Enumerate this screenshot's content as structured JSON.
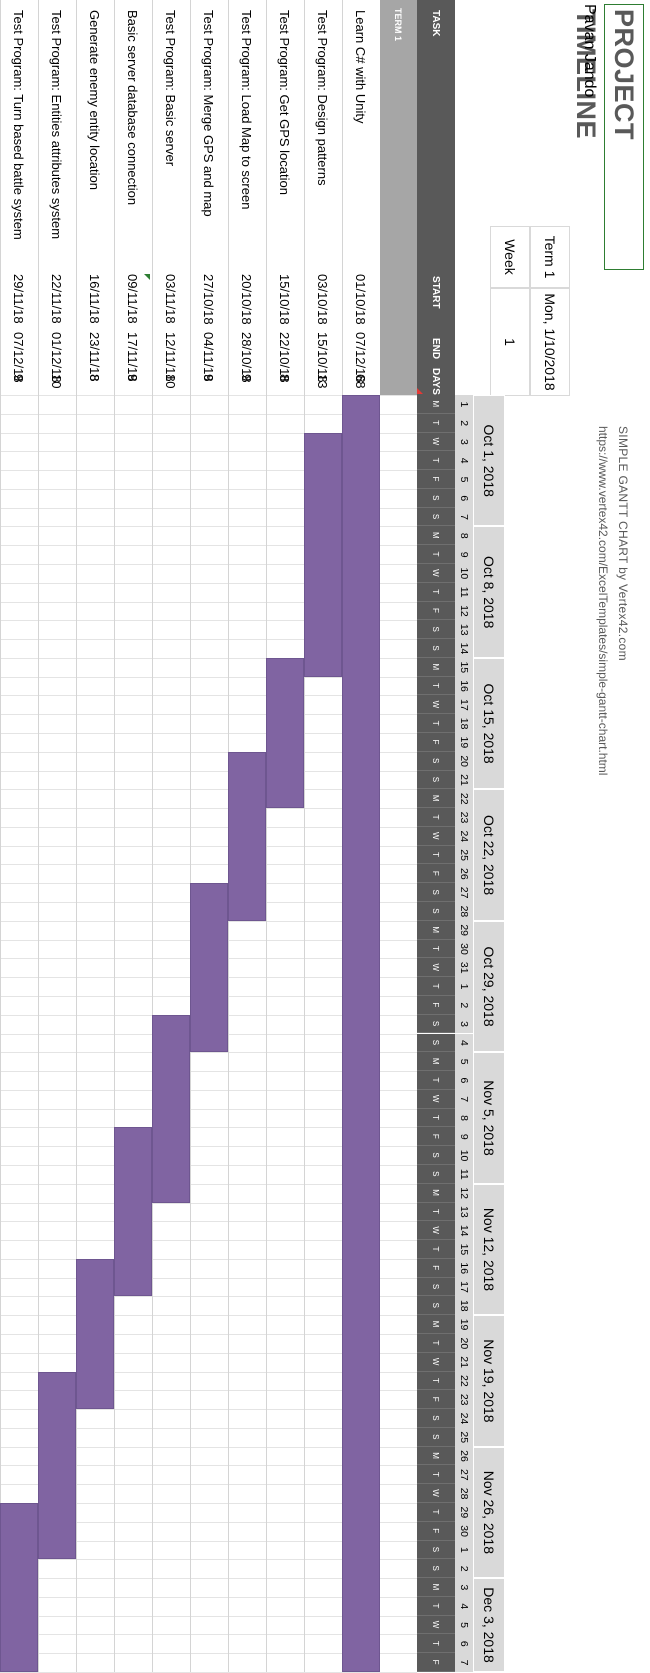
{
  "title": "PROJECT TIMELINE",
  "owner": "Pavan Jando",
  "brand": {
    "title": "SIMPLE GANTT CHART by Vertex42.com",
    "url": "https://www.vertex42.com/ExcelTemplates/simple-gantt-chart.html"
  },
  "project_start_label": "Term 1",
  "project_start_value": "Mon, 1/10/2018",
  "week_label": "Week",
  "week_value": "1",
  "headers": {
    "task": "TASK",
    "start": "START",
    "end": "END",
    "days": "DAYS"
  },
  "weeks": [
    "Oct 1, 2018",
    "Oct 8, 2018",
    "Oct 15, 2018",
    "Oct 22, 2018",
    "Oct 29, 2018",
    "Nov 5, 2018",
    "Nov 12, 2018",
    "Nov 19, 2018",
    "Nov 26, 2018",
    "Dec 3, 2018"
  ],
  "day_numbers": [
    "1",
    "2",
    "3",
    "4",
    "5",
    "6",
    "7",
    "8",
    "9",
    "10",
    "11",
    "12",
    "13",
    "14",
    "15",
    "16",
    "17",
    "18",
    "19",
    "20",
    "21",
    "22",
    "23",
    "24",
    "25",
    "26",
    "27",
    "28",
    "29",
    "30",
    "31",
    "1",
    "2",
    "3",
    "4",
    "5",
    "6",
    "7",
    "8",
    "9",
    "10",
    "11",
    "12",
    "13",
    "14",
    "15",
    "16",
    "17",
    "18",
    "19",
    "20",
    "21",
    "22",
    "23",
    "24",
    "25",
    "26",
    "27",
    "28",
    "29",
    "30",
    "1",
    "2",
    "3",
    "4",
    "5",
    "6",
    "7"
  ],
  "day_letters": [
    "M",
    "T",
    "W",
    "T",
    "F",
    "S",
    "S",
    "M",
    "T",
    "W",
    "T",
    "F",
    "S",
    "S",
    "M",
    "T",
    "W",
    "T",
    "F",
    "S",
    "S",
    "M",
    "T",
    "W",
    "T",
    "F",
    "S",
    "S",
    "M",
    "T",
    "W",
    "T",
    "F",
    "S",
    "S",
    "M",
    "T",
    "W",
    "T",
    "F",
    "S",
    "S",
    "M",
    "T",
    "W",
    "T",
    "F",
    "S",
    "S",
    "M",
    "T",
    "W",
    "T",
    "F",
    "S",
    "S",
    "M",
    "T",
    "W",
    "T",
    "F",
    "S",
    "S",
    "M",
    "T",
    "W",
    "T",
    "F"
  ],
  "phase": "TERM 1",
  "tasks": [
    {
      "name": "Learn C# with Unity",
      "start": "01/10/18",
      "end": "07/12/18",
      "days": "68",
      "offset": 0,
      "duration": 68
    },
    {
      "name": "Test Program: Design patterns",
      "start": "03/10/18",
      "end": "15/10/18",
      "days": "13",
      "offset": 2,
      "duration": 13
    },
    {
      "name": "Test Program: Get GPS location",
      "start": "15/10/18",
      "end": "22/10/18",
      "days": "8",
      "offset": 14,
      "duration": 8
    },
    {
      "name": "Test Program: Load Map to screen",
      "start": "20/10/18",
      "end": "28/10/18",
      "days": "9",
      "offset": 19,
      "duration": 9
    },
    {
      "name": "Test Program: Merge GPS and map",
      "start": "27/10/18",
      "end": "04/11/18",
      "days": "9",
      "offset": 26,
      "duration": 9
    },
    {
      "name": "Test Program: Basic server",
      "start": "03/11/18",
      "end": "12/11/18",
      "days": "10",
      "offset": 33,
      "duration": 10
    },
    {
      "name": "Basic server database connection",
      "start": "09/11/18",
      "end": "17/11/18",
      "days": "9",
      "offset": 39,
      "duration": 9
    },
    {
      "name": "Generate enemy entity location",
      "start": "16/11/18",
      "end": "23/11/18",
      "days": "8",
      "offset": 46,
      "duration": 8
    },
    {
      "name": "Test Program: Entities attributes system",
      "start": "22/11/18",
      "end": "01/12/18",
      "days": "10",
      "offset": 52,
      "duration": 10
    },
    {
      "name": "Test Program: Turn based battle system",
      "start": "29/11/18",
      "end": "07/12/18",
      "days": "9",
      "offset": 59,
      "duration": 9
    }
  ],
  "colors": {
    "bar": "#8064a2",
    "header": "#595959",
    "term": "#a6a6a6",
    "week": "#d9d9d9"
  }
}
